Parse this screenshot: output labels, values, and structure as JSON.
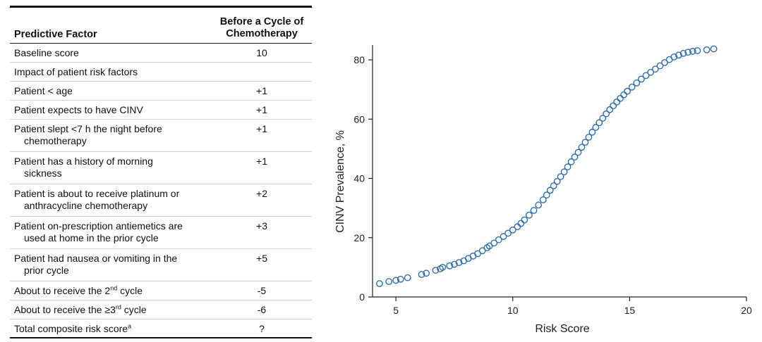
{
  "table": {
    "headers": {
      "factor": "Predictive Factor",
      "value_line1": "Before a Cycle of",
      "value_line2": "Chemotherapy"
    },
    "rows": [
      {
        "factor": "Baseline score",
        "cont": "",
        "value": "10"
      },
      {
        "factor": "Impact of patient risk factors",
        "cont": "",
        "value": ""
      },
      {
        "factor": "Patient < age",
        "cont": "",
        "value": "+1"
      },
      {
        "factor": "Patient expects to have CINV",
        "cont": "",
        "value": "+1"
      },
      {
        "factor": "Patient slept <7 h the night before",
        "cont": "chemotherapy",
        "value": "+1"
      },
      {
        "factor": "Patient has a history of morning",
        "cont": "sickness",
        "value": "+1"
      },
      {
        "factor": "Patient is about to receive platinum or",
        "cont": "anthracycline chemotherapy",
        "value": "+2"
      },
      {
        "factor": "Patient on-prescription antiemetics are",
        "cont": "used at home in the prior cycle",
        "value": "+3"
      },
      {
        "factor": "Patient had nausea or vomiting in the",
        "cont": "prior cycle",
        "value": "+5"
      },
      {
        "factor_pre": "About to receive the 2",
        "factor_sup": "nd",
        "factor_post": " cycle",
        "value": "-5"
      },
      {
        "factor_pre": "About to receive the ≥3",
        "factor_sup": "rd",
        "factor_post": " cycle",
        "value": "-6"
      },
      {
        "factor_pre": "Total composite risk score",
        "factor_sup": "a",
        "factor_post": "",
        "value": "?"
      }
    ]
  },
  "chart_data": {
    "type": "scatter",
    "title": "",
    "xlabel": "Risk Score",
    "ylabel": "CINV Prevalence, %",
    "xlim": [
      4,
      20
    ],
    "ylim": [
      0,
      85
    ],
    "xticks": [
      5,
      10,
      15,
      20
    ],
    "yticks": [
      0,
      20,
      40,
      60,
      80
    ],
    "grid": false,
    "marker": "open-circle",
    "color": "#2f6fb0",
    "x": [
      4.3,
      4.7,
      5.0,
      5.2,
      5.5,
      6.1,
      6.3,
      6.7,
      6.9,
      7.0,
      7.3,
      7.5,
      7.7,
      7.9,
      8.1,
      8.3,
      8.5,
      8.7,
      8.9,
      9.0,
      9.2,
      9.4,
      9.6,
      9.8,
      10.0,
      10.2,
      10.35,
      10.5,
      10.7,
      10.9,
      11.1,
      11.3,
      11.45,
      11.6,
      11.75,
      11.9,
      12.05,
      12.2,
      12.35,
      12.5,
      12.65,
      12.8,
      12.95,
      13.1,
      13.25,
      13.4,
      13.55,
      13.7,
      13.85,
      14.0,
      14.15,
      14.3,
      14.45,
      14.6,
      14.75,
      14.9,
      15.1,
      15.3,
      15.5,
      15.7,
      15.9,
      16.1,
      16.3,
      16.5,
      16.7,
      16.9,
      17.1,
      17.3,
      17.5,
      17.7,
      17.9,
      18.3,
      18.6
    ],
    "y": [
      4.5,
      5.2,
      5.6,
      6.0,
      6.5,
      7.6,
      8.0,
      9.0,
      9.5,
      10.0,
      10.5,
      11.0,
      11.6,
      12.2,
      13.0,
      13.8,
      14.6,
      15.6,
      16.6,
      17.2,
      18.2,
      19.3,
      20.4,
      21.5,
      22.6,
      23.7,
      24.8,
      26.0,
      27.6,
      29.2,
      31.0,
      32.8,
      34.4,
      36.0,
      37.5,
      39.0,
      40.6,
      42.2,
      43.9,
      45.6,
      47.2,
      48.8,
      50.5,
      52.2,
      53.9,
      55.6,
      57.2,
      58.8,
      60.3,
      61.8,
      63.2,
      64.5,
      65.8,
      67.0,
      68.2,
      69.4,
      70.8,
      72.2,
      73.5,
      74.7,
      75.8,
      76.9,
      78.0,
      79.1,
      80.1,
      81.0,
      81.6,
      82.2,
      82.6,
      82.9,
      83.1,
      83.4,
      83.7
    ]
  }
}
